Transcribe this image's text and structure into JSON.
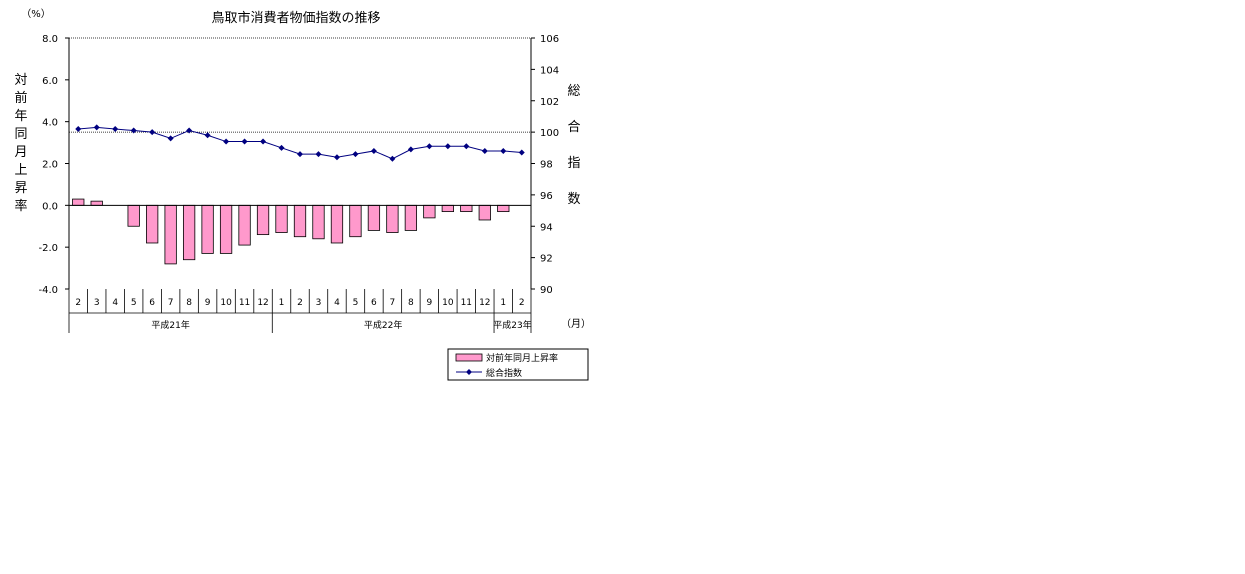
{
  "chart_data": {
    "type": "bar",
    "title": "鳥取市消費者物価指数の推移",
    "left_unit": "（%）",
    "month_unit": "（月）",
    "ylabel_left_chars": [
      "対",
      "前",
      "年",
      "同",
      "月",
      "上",
      "昇",
      "率"
    ],
    "ylabel_right_chars": [
      "総",
      "合",
      "指",
      "数"
    ],
    "left_ylim": [
      -4.0,
      8.0
    ],
    "left_ticks": [
      "8.0",
      "6.0",
      "4.0",
      "2.0",
      "0.0",
      "-2.0",
      "-4.0"
    ],
    "right_ylim": [
      90,
      106
    ],
    "right_ticks": [
      "106",
      "104",
      "102",
      "100",
      "98",
      "96",
      "94",
      "92",
      "90"
    ],
    "categories": [
      "2",
      "3",
      "4",
      "5",
      "6",
      "7",
      "8",
      "9",
      "10",
      "11",
      "12",
      "1",
      "2",
      "3",
      "4",
      "5",
      "6",
      "7",
      "8",
      "9",
      "10",
      "11",
      "12",
      "1",
      "2"
    ],
    "year_groups": [
      {
        "label": "平成21年",
        "start": 0,
        "end": 10
      },
      {
        "label": "平成22年",
        "start": 11,
        "end": 22
      },
      {
        "label": "平成23年",
        "start": 23,
        "end": 24
      }
    ],
    "series": [
      {
        "name": "対前年同月上昇率",
        "type": "bar",
        "axis": "left",
        "color": "#ff99cc",
        "values": [
          0.3,
          0.2,
          0.0,
          -1.0,
          -1.8,
          -2.8,
          -2.6,
          -2.3,
          -2.3,
          -1.9,
          -1.4,
          -1.3,
          -1.5,
          -1.6,
          -1.8,
          -1.5,
          -1.2,
          -1.3,
          -1.2,
          -0.6,
          -0.3,
          -0.3,
          -0.7,
          -0.3,
          0.0
        ]
      },
      {
        "name": "総合指数",
        "type": "line",
        "axis": "right",
        "color": "#000080",
        "values": [
          100.2,
          100.3,
          100.2,
          100.1,
          100.0,
          99.6,
          100.1,
          99.8,
          99.4,
          99.4,
          99.4,
          99.0,
          98.6,
          98.6,
          98.4,
          98.6,
          98.8,
          98.3,
          98.9,
          99.1,
          99.1,
          99.1,
          98.8,
          98.8,
          98.7
        ]
      }
    ],
    "reference_line_right": 100,
    "grid": false,
    "legend_position": "bottom-right"
  }
}
